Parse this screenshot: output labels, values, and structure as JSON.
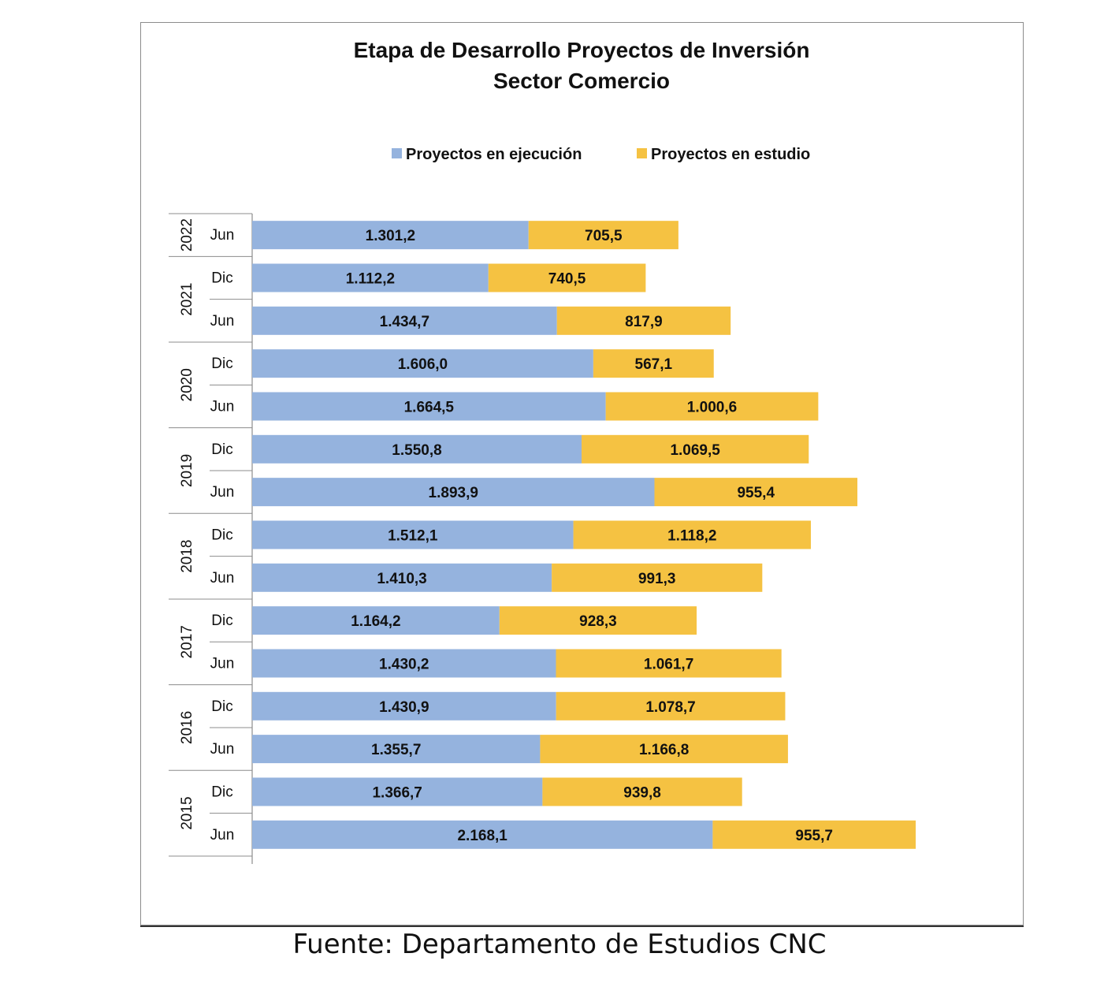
{
  "chart_data": {
    "type": "bar",
    "orientation": "horizontal",
    "stacked": true,
    "title": "Etapa de Desarrollo Proyectos de Inversión",
    "subtitle": "Sector Comercio",
    "xlabel": "",
    "ylabel": "",
    "xlim": [
      0,
      3200
    ],
    "grid": false,
    "legend": "top",
    "categories": [
      {
        "year": "2022",
        "period": "Jun"
      },
      {
        "year": "2021",
        "period": "Dic"
      },
      {
        "year": "2021",
        "period": "Jun"
      },
      {
        "year": "2020",
        "period": "Dic"
      },
      {
        "year": "2020",
        "period": "Jun"
      },
      {
        "year": "2019",
        "period": "Dic"
      },
      {
        "year": "2019",
        "period": "Jun"
      },
      {
        "year": "2018",
        "period": "Dic"
      },
      {
        "year": "2018",
        "period": "Jun"
      },
      {
        "year": "2017",
        "period": "Dic"
      },
      {
        "year": "2017",
        "period": "Jun"
      },
      {
        "year": "2016",
        "period": "Dic"
      },
      {
        "year": "2016",
        "period": "Jun"
      },
      {
        "year": "2015",
        "period": "Dic"
      },
      {
        "year": "2015",
        "period": "Jun"
      }
    ],
    "years": [
      "2022",
      "2021",
      "2020",
      "2019",
      "2018",
      "2017",
      "2016",
      "2015"
    ],
    "series": [
      {
        "name": "Proyectos en ejecución",
        "color": "#95B3DE",
        "values": [
          1301.2,
          1112.2,
          1434.7,
          1606.0,
          1664.5,
          1550.8,
          1893.9,
          1512.1,
          1410.3,
          1164.2,
          1430.2,
          1430.9,
          1355.7,
          1366.7,
          2168.1
        ],
        "labels": [
          "1.301,2",
          "1.112,2",
          "1.434,7",
          "1.606,0",
          "1.664,5",
          "1.550,8",
          "1.893,9",
          "1.512,1",
          "1.410,3",
          "1.164,2",
          "1.430,2",
          "1.430,9",
          "1.355,7",
          "1.366,7",
          "2.168,1"
        ]
      },
      {
        "name": "Proyectos en estudio",
        "color": "#F5C242",
        "values": [
          705.5,
          740.5,
          817.9,
          567.1,
          1000.6,
          1069.5,
          955.4,
          1118.2,
          991.3,
          928.3,
          1061.7,
          1078.7,
          1166.8,
          939.8,
          955.7
        ],
        "labels": [
          "705,5",
          "740,5",
          "817,9",
          "567,1",
          "1.000,6",
          "1.069,5",
          "955,4",
          "1.118,2",
          "991,3",
          "928,3",
          "1.061,7",
          "1.078,7",
          "1.166,8",
          "939,8",
          "955,7"
        ]
      }
    ]
  },
  "source": "Fuente: Departamento de Estudios CNC"
}
